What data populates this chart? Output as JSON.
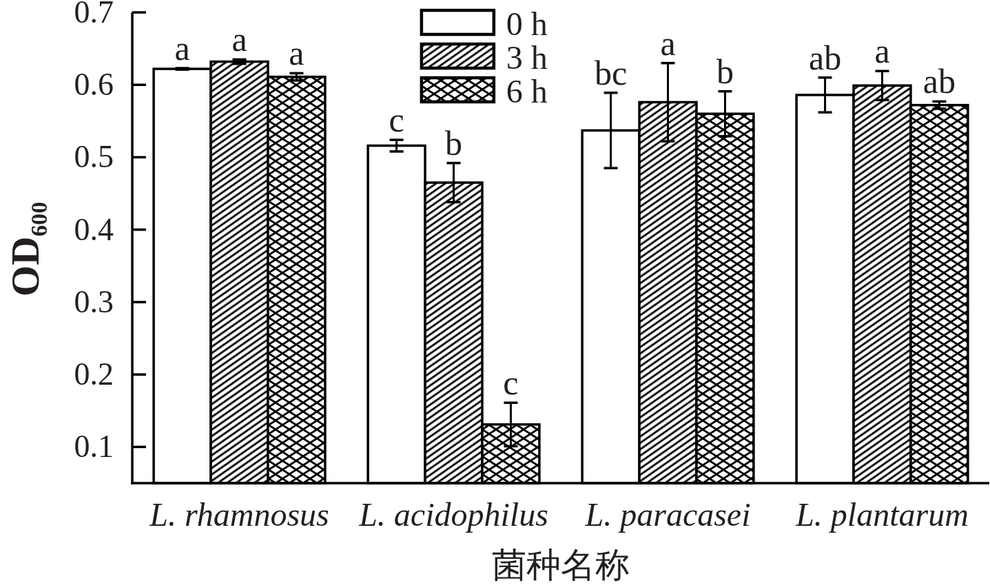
{
  "chart_data": {
    "type": "bar",
    "xlabel": "菌种名称",
    "ylabel": "OD$_{600}$",
    "categories": [
      "L. rhamnosus",
      "L. acidophilus",
      "L. paracasei",
      "L. plantarum"
    ],
    "series": [
      {
        "name": "0 h",
        "color": "#000000",
        "values": [
          0.622,
          0.516,
          0.537,
          0.586
        ],
        "errors": [
          0.001,
          0.008,
          0.052,
          0.024
        ],
        "value_labels": [
          "a",
          "c",
          "bc",
          "ab"
        ]
      },
      {
        "name": "3 h",
        "color": "#000000",
        "values": [
          0.632,
          0.465,
          0.576,
          0.599
        ],
        "errors": [
          0.003,
          0.027,
          0.054,
          0.02
        ],
        "value_labels": [
          "a",
          "b",
          "a",
          "a"
        ]
      },
      {
        "name": "6 h",
        "color": "#000000",
        "values": [
          0.611,
          0.131,
          0.56,
          0.572
        ],
        "errors": [
          0.005,
          0.03,
          0.031,
          0.005
        ],
        "value_labels": [
          "a",
          "c",
          "b",
          "ab"
        ]
      }
    ],
    "ylim": [
      0.05,
      0.7
    ],
    "yticks": [
      0.1,
      0.2,
      0.3,
      0.4,
      0.5,
      0.6,
      0.7
    ],
    "legend": "top"
  }
}
